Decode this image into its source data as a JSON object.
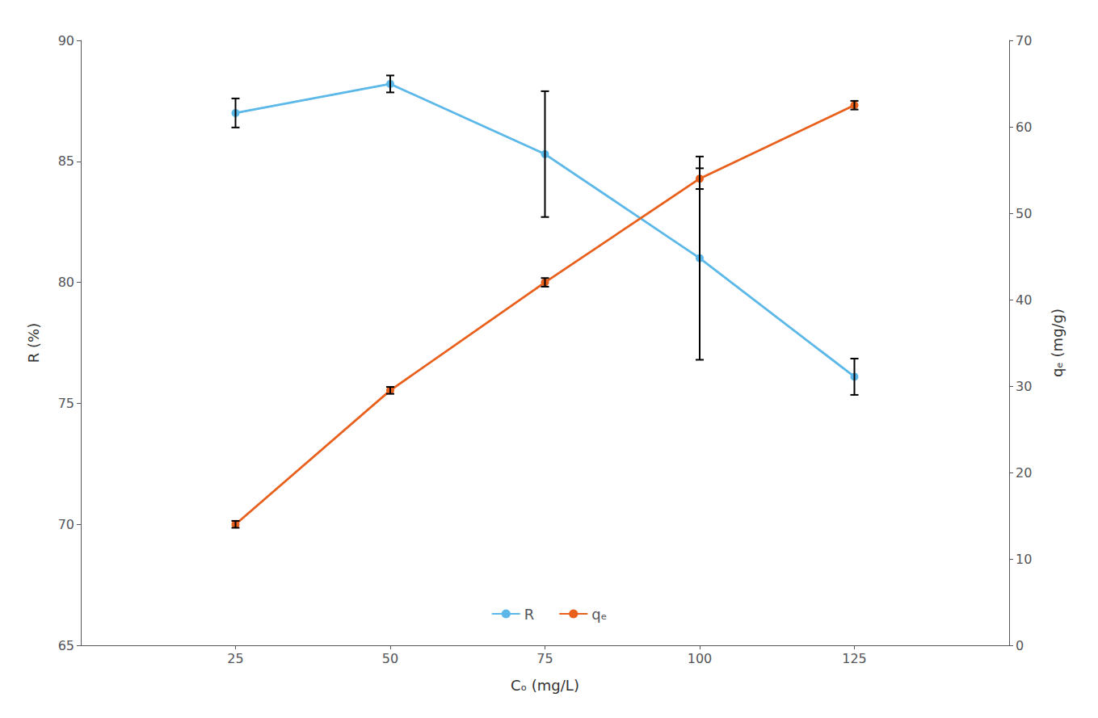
{
  "chart_data": {
    "type": "line",
    "xlabel": "Cₒ (mg/L)",
    "ylabel": "R (%)",
    "y2label": "qₑ (mg/g)",
    "x": [
      25,
      50,
      75,
      100,
      125
    ],
    "series": [
      {
        "name": "R",
        "color": "#5BB8E8",
        "marker": "circle",
        "values": [
          87.0,
          88.2,
          85.3,
          81.0,
          76.1
        ],
        "errors": [
          0.6,
          0.35,
          2.6,
          4.2,
          0.75
        ]
      },
      {
        "name": "qₑ",
        "color": "#E8601C",
        "marker": "circle",
        "axis": "y2",
        "values": [
          14.0,
          29.5,
          42.0,
          54.0,
          62.5
        ],
        "errors": [
          0.4,
          0.4,
          0.5,
          1.2,
          0.5
        ]
      }
    ],
    "xlim": [
      0,
      150
    ],
    "xticks": [
      25,
      50,
      75,
      100,
      125
    ],
    "ylim": [
      65,
      90
    ],
    "yticks": [
      65,
      70,
      75,
      80,
      85,
      90
    ],
    "y2lim": [
      0,
      70
    ],
    "y2ticks": [
      0,
      10,
      20,
      30,
      40,
      50,
      60,
      70
    ],
    "grid": false,
    "legend": "lower center"
  }
}
